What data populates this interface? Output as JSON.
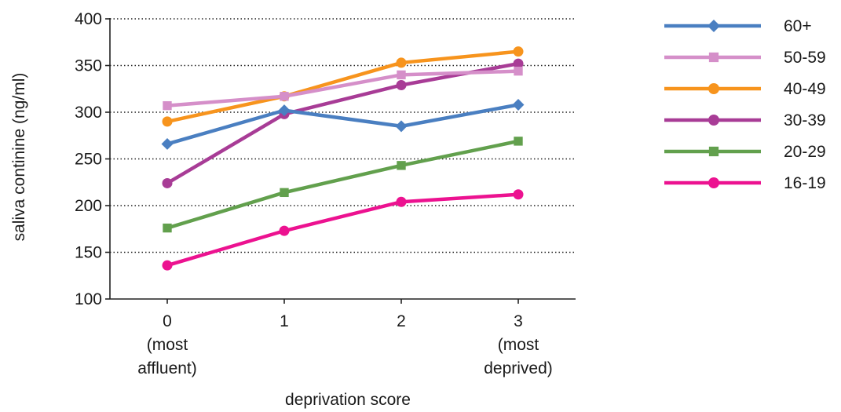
{
  "chart_data": {
    "type": "line",
    "xlabel": "deprivation score",
    "ylabel": "saliva continine (ng/ml)",
    "x": [
      0,
      1,
      2,
      3
    ],
    "x_tick_labels": [
      [
        "0",
        "(most",
        "affluent)"
      ],
      [
        "1"
      ],
      [
        "2"
      ],
      [
        "3",
        "(most",
        "deprived)"
      ]
    ],
    "ylim": [
      100,
      400
    ],
    "y_ticks": [
      100,
      150,
      200,
      250,
      300,
      350,
      400
    ],
    "grid": "horizontal-dotted",
    "legend_position": "right",
    "series": [
      {
        "name": "60+",
        "color": "#4a7fc1",
        "marker": "diamond",
        "values": [
          266,
          302,
          285,
          308
        ]
      },
      {
        "name": "50-59",
        "color": "#d58fc9",
        "marker": "square",
        "values": [
          307,
          317,
          340,
          344
        ]
      },
      {
        "name": "40-49",
        "color": "#f7941d",
        "marker": "circle",
        "values": [
          290,
          317,
          353,
          365
        ]
      },
      {
        "name": "30-39",
        "color": "#a83c96",
        "marker": "circle",
        "values": [
          224,
          298,
          329,
          352
        ]
      },
      {
        "name": "20-29",
        "color": "#62a04d",
        "marker": "square",
        "values": [
          176,
          214,
          243,
          269
        ]
      },
      {
        "name": "16-19",
        "color": "#ec1290",
        "marker": "circle",
        "values": [
          136,
          173,
          204,
          212
        ]
      }
    ]
  }
}
